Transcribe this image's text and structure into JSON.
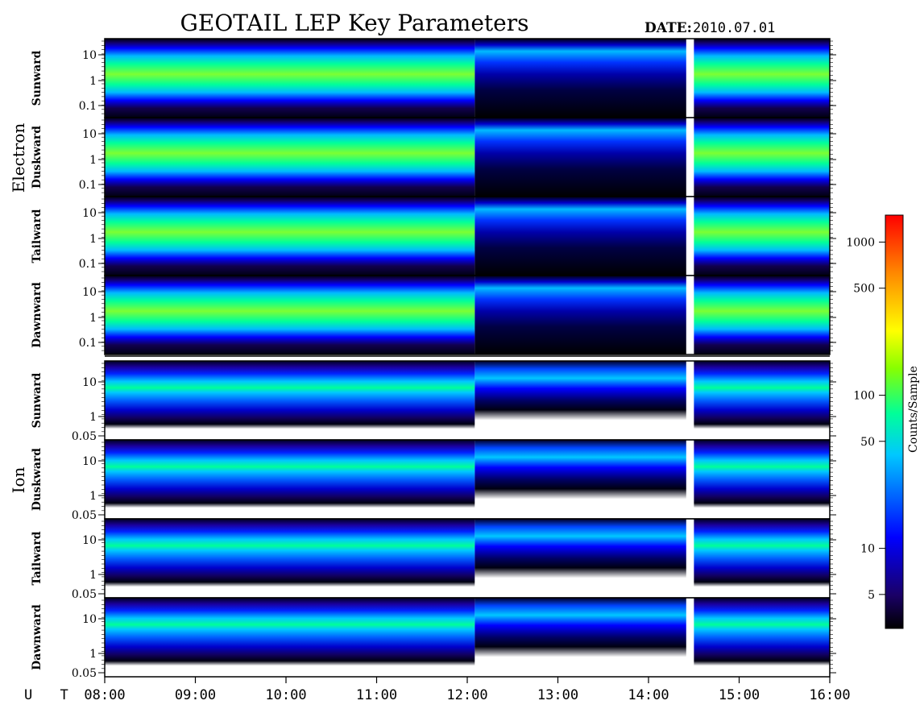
{
  "header": {
    "title": "GEOTAIL LEP Key Parameters",
    "date_label": "DATE:",
    "date_value": "2010.07.01"
  },
  "groups": [
    {
      "label": "Electron",
      "panels": [
        "Sunward",
        "Duskward",
        "Tailward",
        "Dawnward"
      ]
    },
    {
      "label": "Ion",
      "panels": [
        "Sunward",
        "Duskward",
        "Tailward",
        "Dawnward"
      ]
    }
  ],
  "colorbar": {
    "label": "Counts/Sample",
    "ticks": [
      "5",
      "10",
      "50",
      "100",
      "500",
      "1000"
    ],
    "colors": [
      "#000000",
      "#1a0066",
      "#0000ff",
      "#00c8ff",
      "#00ff99",
      "#88ff00",
      "#ffff00",
      "#ff8800",
      "#ff0000"
    ]
  },
  "chart_data": {
    "type": "heatmap",
    "title": "GEOTAIL LEP Key Parameters",
    "x_axis": {
      "label": "U T",
      "ticks": [
        "08:00",
        "09:00",
        "10:00",
        "11:00",
        "12:00",
        "13:00",
        "14:00",
        "15:00",
        "16:00"
      ],
      "range": [
        "08:00",
        "16:00"
      ]
    },
    "electron_panels": {
      "names": [
        "Sunward",
        "Duskward",
        "Tailward",
        "Dawnward"
      ],
      "y_scale": "log",
      "y_ticks": [
        "10",
        "1",
        "0.1"
      ]
    },
    "ion_panels": {
      "names": [
        "Sunward",
        "Duskward",
        "Tailward",
        "Dawnward"
      ],
      "y_scale": "log",
      "y_ticks": [
        "10",
        "1",
        "0.05"
      ]
    },
    "color_scale": {
      "label": "Counts/Sample",
      "scale": "log",
      "range": [
        3,
        1500
      ]
    },
    "data_gap": [
      "14:25",
      "14:30"
    ],
    "transition_time": "12:05"
  }
}
